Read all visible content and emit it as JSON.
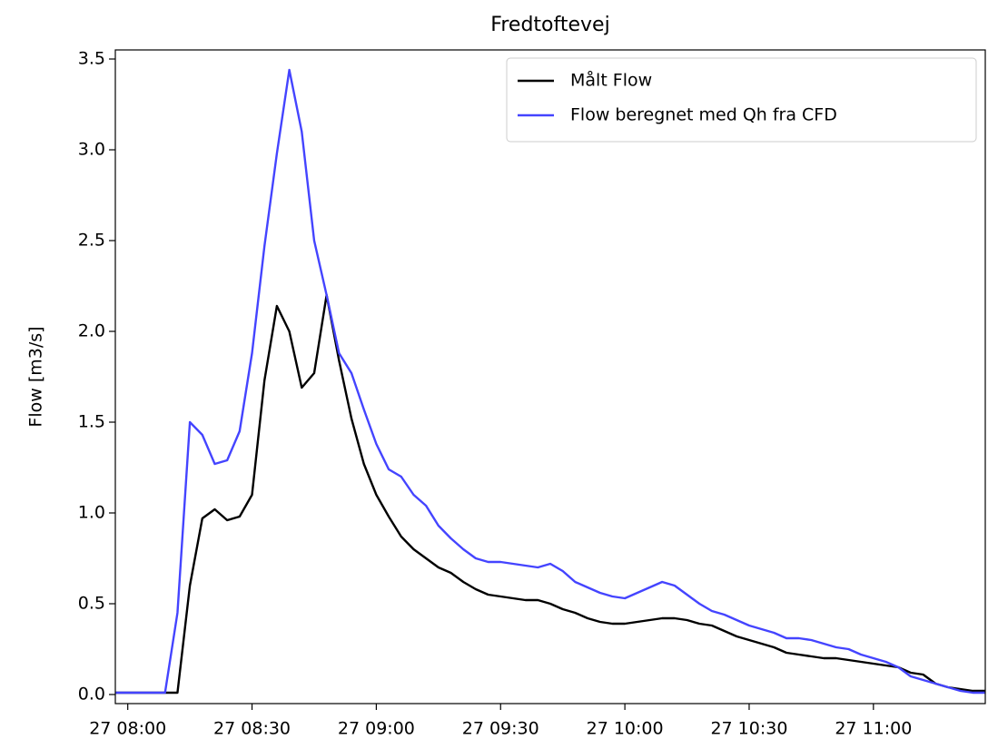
{
  "chart_data": {
    "type": "line",
    "title": "Fredtoftevej",
    "ylabel": "Flow [m3/s]",
    "x": [
      "27 07:57",
      "27 08:00",
      "27 08:03",
      "27 08:06",
      "27 08:09",
      "27 08:12",
      "27 08:15",
      "27 08:18",
      "27 08:21",
      "27 08:24",
      "27 08:27",
      "27 08:30",
      "27 08:33",
      "27 08:36",
      "27 08:39",
      "27 08:42",
      "27 08:45",
      "27 08:48",
      "27 08:51",
      "27 08:54",
      "27 08:57",
      "27 09:00",
      "27 09:03",
      "27 09:06",
      "27 09:09",
      "27 09:12",
      "27 09:15",
      "27 09:18",
      "27 09:21",
      "27 09:24",
      "27 09:27",
      "27 09:30",
      "27 09:33",
      "27 09:36",
      "27 09:39",
      "27 09:42",
      "27 09:45",
      "27 09:48",
      "27 09:51",
      "27 09:54",
      "27 09:57",
      "27 10:00",
      "27 10:03",
      "27 10:06",
      "27 10:09",
      "27 10:12",
      "27 10:15",
      "27 10:18",
      "27 10:21",
      "27 10:24",
      "27 10:27",
      "27 10:30",
      "27 10:33",
      "27 10:36",
      "27 10:39",
      "27 10:42",
      "27 10:45",
      "27 10:48",
      "27 10:51",
      "27 10:54",
      "27 10:57",
      "27 11:00",
      "27 11:03",
      "27 11:06",
      "27 11:09",
      "27 11:12",
      "27 11:15",
      "27 11:18",
      "27 11:21",
      "27 11:24",
      "27 11:27"
    ],
    "series": [
      {
        "name": "Målt Flow",
        "color": "#000000",
        "values": [
          0.01,
          0.01,
          0.01,
          0.01,
          0.01,
          0.01,
          0.6,
          0.97,
          1.02,
          0.96,
          0.98,
          1.1,
          1.73,
          2.14,
          2.0,
          1.69,
          1.77,
          2.2,
          1.84,
          1.52,
          1.27,
          1.1,
          0.98,
          0.87,
          0.8,
          0.75,
          0.7,
          0.67,
          0.62,
          0.58,
          0.55,
          0.54,
          0.53,
          0.52,
          0.52,
          0.5,
          0.47,
          0.45,
          0.42,
          0.4,
          0.39,
          0.39,
          0.4,
          0.41,
          0.42,
          0.42,
          0.41,
          0.39,
          0.38,
          0.35,
          0.32,
          0.3,
          0.28,
          0.26,
          0.23,
          0.22,
          0.21,
          0.2,
          0.2,
          0.19,
          0.18,
          0.17,
          0.16,
          0.15,
          0.12,
          0.11,
          0.06,
          0.04,
          0.03,
          0.02,
          0.02
        ]
      },
      {
        "name": "Flow beregnet med Qh fra CFD",
        "color": "#4444ff",
        "values": [
          0.01,
          0.01,
          0.01,
          0.01,
          0.01,
          0.45,
          1.5,
          1.43,
          1.27,
          1.29,
          1.45,
          1.88,
          2.47,
          2.98,
          3.44,
          3.1,
          2.5,
          2.2,
          1.88,
          1.77,
          1.57,
          1.38,
          1.24,
          1.2,
          1.1,
          1.04,
          0.93,
          0.86,
          0.8,
          0.75,
          0.73,
          0.73,
          0.72,
          0.71,
          0.7,
          0.72,
          0.68,
          0.62,
          0.59,
          0.56,
          0.54,
          0.53,
          0.56,
          0.59,
          0.62,
          0.6,
          0.55,
          0.5,
          0.46,
          0.44,
          0.41,
          0.38,
          0.36,
          0.34,
          0.31,
          0.31,
          0.3,
          0.28,
          0.26,
          0.25,
          0.22,
          0.2,
          0.18,
          0.15,
          0.1,
          0.08,
          0.06,
          0.04,
          0.02,
          0.01,
          0.01
        ]
      }
    ],
    "xlim": [
      "27 07:57",
      "27 11:27"
    ],
    "xticks": [
      "27 08:00",
      "27 08:30",
      "27 09:00",
      "27 09:30",
      "27 10:00",
      "27 10:30",
      "27 11:00"
    ],
    "ylim": [
      -0.05,
      3.55
    ],
    "yticks": [
      {
        "value": 0,
        "label": "0.0"
      },
      0.5,
      {
        "value": 1,
        "label": "1.0"
      },
      1.5,
      {
        "value": 2,
        "label": "2.0"
      },
      2.5,
      {
        "value": 3,
        "label": "3.0"
      },
      3.5
    ],
    "legend": "upper right"
  }
}
